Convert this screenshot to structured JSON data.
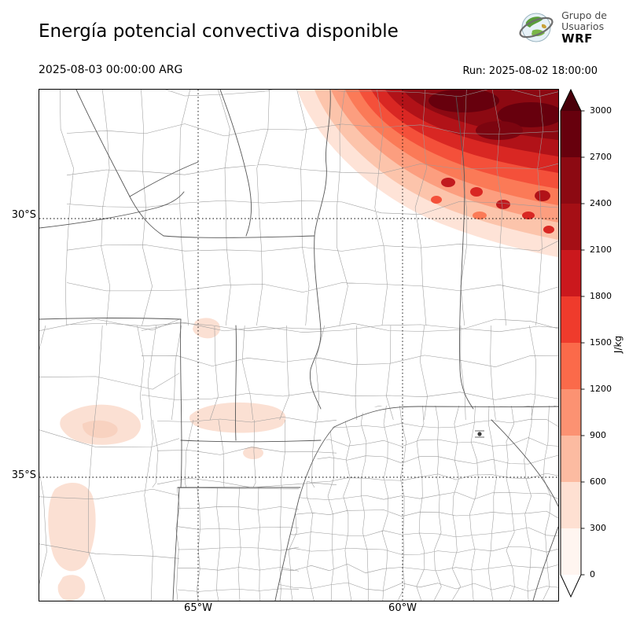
{
  "header": {
    "title": "Energía potencial convectiva disponible",
    "valid_time": "2025-08-03 00:00:00 ARG",
    "run_time": "Run: 2025-08-02 18:00:00",
    "logo": {
      "line1": "Grupo de",
      "line2": "Usuarios",
      "line3": "WRF"
    }
  },
  "map": {
    "lat_ticks": [
      "30°S",
      "35°S"
    ],
    "lon_ticks": [
      "65°W",
      "60°W"
    ]
  },
  "colorbar": {
    "unit": "J/kg",
    "ticks": [
      "0",
      "300",
      "600",
      "900",
      "1200",
      "1500",
      "1800",
      "2100",
      "2400",
      "2700",
      "3000"
    ],
    "segment_colors": [
      "#fff5f0",
      "#fee0d2",
      "#fcbba1",
      "#fc9272",
      "#fb6a4a",
      "#ef3b2c",
      "#cb181d",
      "#a50f15",
      "#8c0912",
      "#67000d"
    ],
    "over_color": "#49000a",
    "under_color": "#ffffff"
  },
  "chart_data": {
    "type": "heatmap",
    "title": "Energía potencial convectiva disponible",
    "variable_units": "J/kg",
    "valid_time": "2025-08-03 00:00:00 ARG",
    "model_run": "Run: 2025-08-02 18:00:00",
    "x_ticks": [
      "65°W",
      "60°W"
    ],
    "y_ticks": [
      "30°S",
      "35°S"
    ],
    "colorbar": {
      "min": 0,
      "max": 3000,
      "ticks": [
        0,
        300,
        600,
        900,
        1200,
        1500,
        1800,
        2100,
        2400,
        2700,
        3000
      ],
      "unit": "J/kg",
      "colormap": "white-to-dark-red"
    },
    "field_summary": [
      {
        "area": "far northeast corner of domain",
        "cape_jkg": "2400-3000+ (maximum, dark red)"
      },
      {
        "area": "northeast band southwest of maximum",
        "cape_jkg": "300-2400 (concentric decreasing shades)"
      },
      {
        "area": "scattered central and west-central patches",
        "cape_jkg": "0-300 (faint pink)"
      },
      {
        "area": "scattered southwest / bottom-left patches",
        "cape_jkg": "0-300 (faint pink)"
      },
      {
        "area": "remainder of domain",
        "cape_jkg": "≈0 (white)"
      }
    ]
  }
}
